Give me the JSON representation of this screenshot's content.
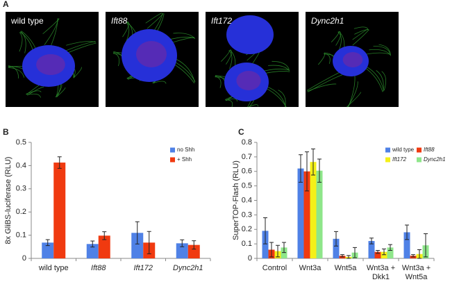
{
  "panel_labels": [
    "A",
    "B",
    "C"
  ],
  "images": [
    {
      "label": "wild type",
      "italic": false
    },
    {
      "label": "Ift88",
      "italic": true
    },
    {
      "label": "Ift172",
      "italic": true
    },
    {
      "label": "Dync2h1",
      "italic": true
    }
  ],
  "chart_data": [
    {
      "type": "bar",
      "ylabel": "8x GliBS-luciferase (RLU)",
      "categories": [
        "wild type",
        "Ift88",
        "Ift172",
        "Dync2h1"
      ],
      "italic_categories": [
        false,
        true,
        true,
        true
      ],
      "series": [
        {
          "name": "no Shh",
          "color": "#4f81e6",
          "values": [
            0.068,
            0.062,
            0.11,
            0.065
          ],
          "errors": [
            0.013,
            0.013,
            0.048,
            0.015
          ]
        },
        {
          "name": "+ Shh",
          "color": "#f03a10",
          "values": [
            0.413,
            0.098,
            0.068,
            0.058
          ],
          "errors": [
            0.025,
            0.017,
            0.048,
            0.018
          ]
        }
      ],
      "ylim": [
        0,
        0.5
      ],
      "yticks": [
        0,
        0.1,
        0.2,
        0.3,
        0.4,
        0.5
      ],
      "legend": "top-right"
    },
    {
      "type": "bar",
      "ylabel": "SuperTOP-Flash (RLU)",
      "categories": [
        "Control",
        "Wnt3a",
        "Wnt5a",
        [
          "Wnt3a +",
          "Dkk1"
        ],
        [
          "Wnt3a +",
          "Wnt5a"
        ]
      ],
      "italic_categories": [
        false,
        false,
        false,
        false,
        false
      ],
      "series": [
        {
          "name": "wild type",
          "italic": false,
          "color": "#4f81e6",
          "values": [
            0.19,
            0.62,
            0.135,
            0.12,
            0.18
          ],
          "errors": [
            0.09,
            0.095,
            0.05,
            0.02,
            0.05
          ]
        },
        {
          "name": "Ift88",
          "italic": true,
          "color": "#f03a10",
          "values": [
            0.06,
            0.6,
            0.018,
            0.045,
            0.018
          ],
          "errors": [
            0.05,
            0.135,
            0.008,
            0.01,
            0.008
          ]
        },
        {
          "name": "Ift172",
          "italic": true,
          "color": "#f4f018",
          "values": [
            0.05,
            0.665,
            0.01,
            0.045,
            0.03
          ],
          "errors": [
            0.04,
            0.09,
            0.01,
            0.02,
            0.03
          ]
        },
        {
          "name": "Dync2h1",
          "italic": true,
          "color": "#8ee68a",
          "values": [
            0.075,
            0.605,
            0.04,
            0.075,
            0.09
          ],
          "errors": [
            0.035,
            0.08,
            0.035,
            0.02,
            0.08
          ]
        }
      ],
      "ylim": [
        0,
        0.8
      ],
      "yticks": [
        0,
        0.1,
        0.2,
        0.3,
        0.4,
        0.5,
        0.6,
        0.7,
        0.8
      ],
      "legend": "top-right"
    }
  ]
}
